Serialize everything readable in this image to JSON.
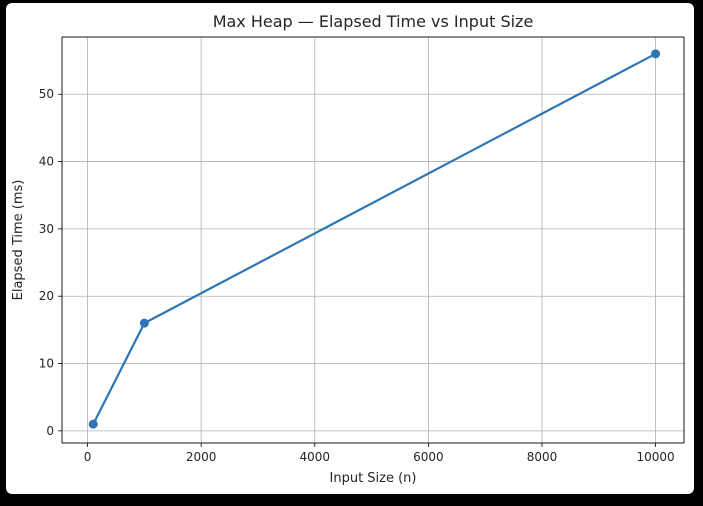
{
  "chart_data": {
    "type": "line",
    "title": "Max Heap — Elapsed Time vs Input Size",
    "xlabel": "Input Size (n)",
    "ylabel": "Elapsed Time (ms)",
    "x": [
      100,
      1000,
      10000
    ],
    "series": [
      {
        "values": [
          1,
          16,
          56
        ]
      }
    ],
    "xlim": [
      -450,
      10500
    ],
    "ylim": [
      -1.8,
      58.5
    ],
    "xticks": [
      0,
      2000,
      4000,
      6000,
      8000,
      10000
    ],
    "xtick_labels": [
      "0",
      "2000",
      "4000",
      "6000",
      "8000",
      "10000"
    ],
    "yticks": [
      0,
      10,
      20,
      30,
      40,
      50
    ],
    "ytick_labels": [
      "0",
      "10",
      "20",
      "30",
      "40",
      "50"
    ],
    "grid": true,
    "line_color": "#2e75b5",
    "grid_color": "#b0b0b0"
  }
}
